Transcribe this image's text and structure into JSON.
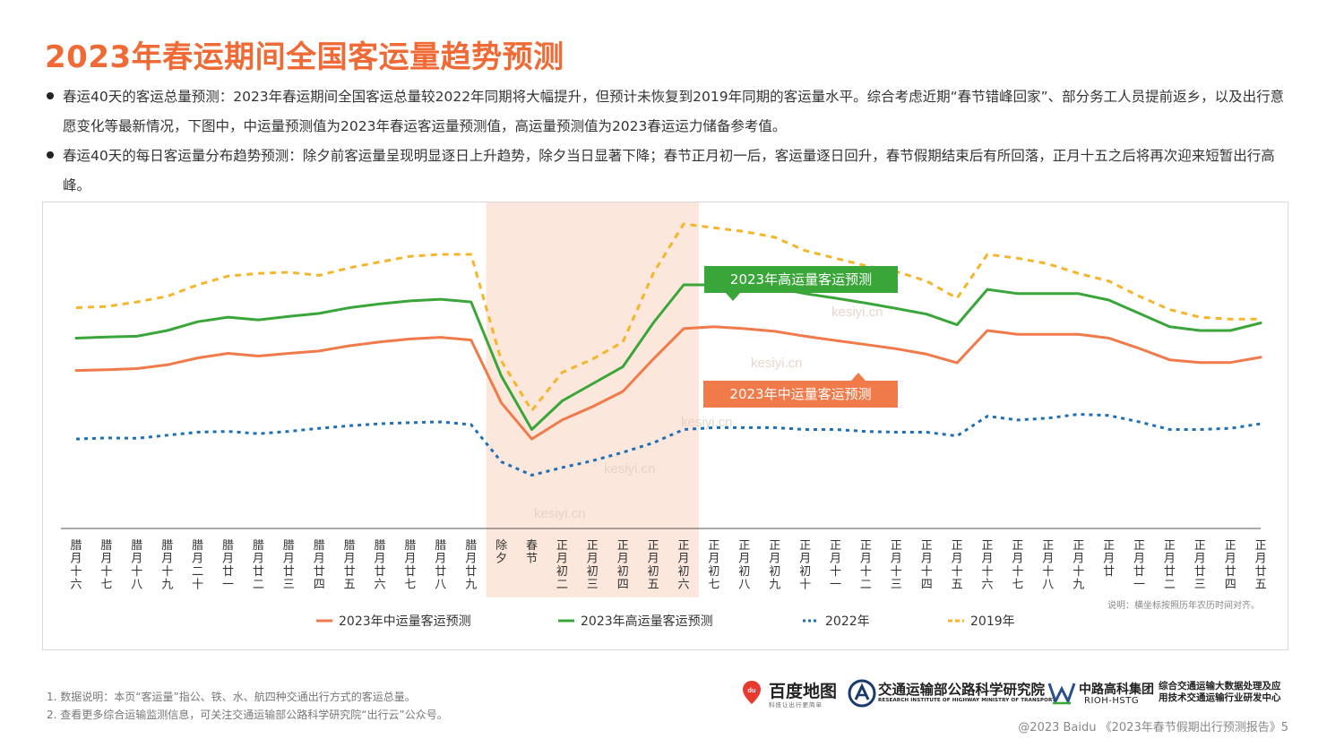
{
  "page": {
    "title": "2023年春运期间全国客运量趋势预测",
    "bullets": [
      "春运40天的客运总量预测：2023年春运期间全国客运总量较2022年同期将大幅提升，但预计未恢复到2019年同期的客运量水平。综合考虑近期“春节错峰回家”、部分务工人员提前返乡，以及出行意愿变化等最新情况，下图中，中运量预测值为2023年春运客运量预测值，高运量预测值为2023春运运力储备参考值。",
      "春运40天的每日客运量分布趋势预测：除夕前客运量呈现明显逐日上升趋势，除夕当日显著下降；春节正月初一后，客运量逐日回升，春节假期结束后有所回落，正月十五之后将再次迎来短暂出行高峰。"
    ],
    "footnotes": [
      "1.   数据说明：本页“客运量”指公、铁、水、航四种交通出行方式的客运总量。",
      "2.   查看更多综合运输监测信息，可关注交通运输部公路科学研究院“出行云”公众号。"
    ],
    "copyright": "@2023 Baidu 《2023年春节假期出行预测报告》5"
  },
  "logos": {
    "baidu_name": "百度地图",
    "baidu_slogan": "科技让出行更简单",
    "baidu_pin_text": "du",
    "riohtl_name": "交通运输部公路科学研究院",
    "riohtl_en": "RESEARCH INSTITUTE OF HIGHWAY MINISTRY OF TRANSPORT",
    "hstg_name": "中路高科集团",
    "hstg_en": "RIOH-HSTG",
    "hstg_center_line1": "综合交通运输大数据处理及应",
    "hstg_center_line2": "用技术交通运输行业研发中心"
  },
  "chart_data": {
    "type": "line",
    "categories": [
      "腊月十六",
      "腊月十七",
      "腊月十八",
      "腊月十九",
      "腊月二十",
      "腊月廿一",
      "腊月廿二",
      "腊月廿三",
      "腊月廿四",
      "腊月廿五",
      "腊月廿六",
      "腊月廿七",
      "腊月廿八",
      "腊月廿九",
      "除夕",
      "春节",
      "正月初二",
      "正月初三",
      "正月初四",
      "正月初五",
      "正月初六",
      "正月初七",
      "正月初八",
      "正月初九",
      "正月初十",
      "正月十一",
      "正月十二",
      "正月十三",
      "正月十四",
      "正月十五",
      "正月十六",
      "正月十七",
      "正月十八",
      "正月十九",
      "正月廿",
      "正月廿一",
      "正月廿二",
      "正月廿三",
      "正月廿四",
      "正月廿五"
    ],
    "highlight_range": [
      "除夕",
      "正月初六"
    ],
    "series": [
      {
        "name": "2023年中运量客运预测",
        "color": "#f07a4a",
        "dash": "solid",
        "values": [
          41.5,
          41.7,
          42.0,
          43.0,
          44.8,
          46.0,
          45.3,
          46.0,
          46.6,
          48.0,
          49.0,
          49.8,
          50.2,
          49.5,
          33.0,
          23.5,
          28.5,
          32.0,
          36.0,
          44.5,
          52.5,
          53.0,
          52.5,
          51.8,
          50.5,
          49.4,
          48.3,
          47.2,
          45.8,
          43.5,
          52.0,
          51.0,
          51.0,
          51.0,
          50.0,
          47.3,
          44.3,
          43.6,
          43.6,
          45.0
        ]
      },
      {
        "name": "2023年高运量客运预测",
        "color": "#3aa63a",
        "dash": "solid",
        "values": [
          50.0,
          50.3,
          50.5,
          52.0,
          54.3,
          55.5,
          54.8,
          55.7,
          56.5,
          58.0,
          59.0,
          59.8,
          60.2,
          59.5,
          40.0,
          26.0,
          33.5,
          38.0,
          42.5,
          54.0,
          64.0,
          64.0,
          63.8,
          63.3,
          61.7,
          60.5,
          59.2,
          57.8,
          56.3,
          53.5,
          62.8,
          61.7,
          61.7,
          61.7,
          60.0,
          56.5,
          53.0,
          52.0,
          52.0,
          54.0
        ]
      },
      {
        "name": "2022年",
        "color": "#1f6fb5",
        "dash": "dotted",
        "values": [
          23.5,
          23.8,
          23.7,
          24.5,
          25.3,
          25.5,
          24.9,
          25.5,
          26.3,
          27.0,
          27.5,
          27.8,
          28.0,
          27.3,
          17.5,
          14.0,
          16.0,
          17.8,
          20.0,
          22.5,
          26.0,
          26.5,
          26.5,
          26.5,
          26.0,
          26.0,
          25.5,
          25.3,
          25.3,
          24.3,
          29.5,
          28.5,
          29.0,
          30.0,
          29.7,
          28.0,
          26.0,
          26.0,
          26.3,
          27.5
        ]
      },
      {
        "name": "2019年",
        "color": "#f5b52a",
        "dash": "dashed",
        "values": [
          58.0,
          58.3,
          59.5,
          61.0,
          64.0,
          66.3,
          67.0,
          67.3,
          66.5,
          68.5,
          70.0,
          71.5,
          72.0,
          72.0,
          44.0,
          31.0,
          41.0,
          44.5,
          49.0,
          67.0,
          80.0,
          79.0,
          78.0,
          76.5,
          73.0,
          71.0,
          69.0,
          67.5,
          65.0,
          60.5,
          72.0,
          71.0,
          69.5,
          67.0,
          65.0,
          61.0,
          57.5,
          55.5,
          55.0,
          55.0
        ]
      }
    ],
    "annotations": [
      {
        "text": "2023年高运量客运预测",
        "series": "2023年高运量客运预测",
        "color": "#3aa63a"
      },
      {
        "text": "2023年中运量客运预测",
        "series": "2023年中运量客运预测",
        "color": "#f07a4a"
      }
    ],
    "legend_position": "bottom",
    "note": "说明：横坐标按照历年农历时间对齐。",
    "watermark": "kesiyi.cn",
    "highlight_color": "#fbe7dc"
  }
}
